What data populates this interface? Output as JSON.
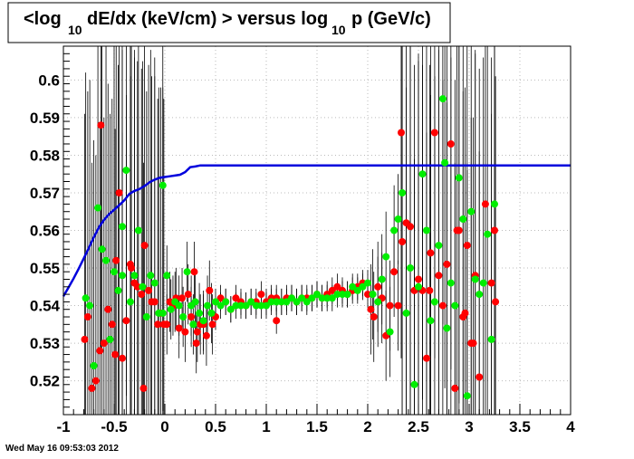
{
  "chart_data": {
    "type": "scatter",
    "title_parts": [
      "<log",
      "10",
      "dE/dx (keV/cm) > versus log",
      "10",
      "p (GeV/c)"
    ],
    "xlabel": "",
    "ylabel": "",
    "xlim": [
      -1,
      4
    ],
    "ylim": [
      0.511,
      0.609
    ],
    "xticks": [
      "-1",
      "-0.5",
      "0",
      "0.5",
      "1",
      "1.5",
      "2",
      "2.5",
      "3",
      "3.5",
      "4"
    ],
    "yticks": [
      "0.52",
      "0.53",
      "0.54",
      "0.55",
      "0.56",
      "0.57",
      "0.58",
      "0.59",
      "0.6"
    ],
    "grid": true,
    "colors": {
      "red_series": "#ff0000",
      "green_series": "#00ee00",
      "curve": "#0000dd",
      "error_bars": "#000000"
    },
    "curve": {
      "x": [
        -1.0,
        -0.95,
        -0.9,
        -0.85,
        -0.8,
        -0.75,
        -0.7,
        -0.65,
        -0.6,
        -0.55,
        -0.5,
        -0.45,
        -0.4,
        -0.35,
        -0.3,
        -0.25,
        -0.2,
        -0.15,
        -0.1,
        -0.05,
        0.0,
        0.05,
        0.1,
        0.15,
        0.2,
        0.25,
        0.3,
        0.35,
        0.4,
        1.0,
        2.0,
        3.0,
        4.0
      ],
      "y": [
        0.5425,
        0.5448,
        0.5472,
        0.5498,
        0.5525,
        0.5553,
        0.5582,
        0.5608,
        0.5628,
        0.5643,
        0.5655,
        0.5667,
        0.568,
        0.5697,
        0.5705,
        0.571,
        0.5718,
        0.5728,
        0.5735,
        0.574,
        0.5742,
        0.5744,
        0.5746,
        0.5748,
        0.5755,
        0.5768,
        0.577,
        0.5773,
        0.5773,
        0.5773,
        0.5773,
        0.5773,
        0.5773
      ]
    },
    "series": [
      {
        "color": "red",
        "x": [
          -0.79,
          -0.76,
          -0.72,
          -0.68,
          -0.64,
          -0.6,
          -0.56,
          -0.52,
          -0.49,
          -0.45,
          -0.42,
          -0.38,
          -0.34,
          -0.3,
          -0.27,
          -0.23,
          -0.2,
          -0.16,
          -0.13,
          -0.1,
          -0.07,
          -0.04,
          -0.01,
          0.02,
          0.05,
          0.08,
          0.11,
          0.14,
          0.17,
          0.2,
          0.23,
          0.26,
          0.29,
          0.32,
          0.35,
          0.38,
          0.41,
          0.44,
          0.47,
          0.5,
          0.55,
          0.6,
          0.65,
          0.7,
          0.75,
          0.8,
          0.85,
          0.9,
          0.95,
          1.0,
          1.05,
          1.1,
          1.15,
          1.2,
          1.25,
          1.3,
          1.35,
          1.4,
          1.45,
          1.5,
          1.55,
          1.6,
          1.65,
          1.7,
          1.75,
          1.8,
          1.85,
          1.9,
          1.95,
          2.0,
          2.03,
          2.06,
          2.1,
          2.14,
          2.18,
          2.22,
          2.26,
          2.3,
          2.34,
          2.38,
          2.42,
          2.46,
          2.5,
          2.54,
          2.58,
          2.62,
          2.66,
          2.7,
          2.74,
          2.78,
          2.82,
          2.86,
          2.9,
          2.94,
          2.98,
          3.02,
          3.06,
          3.1,
          3.16,
          3.22,
          3.26,
          -0.63,
          -0.48,
          -0.33,
          -0.21,
          0.31,
          1.1,
          2.33,
          2.61,
          2.88
        ],
        "y": [
          0.531,
          0.537,
          0.518,
          0.52,
          0.528,
          0.53,
          0.539,
          0.535,
          0.527,
          0.57,
          0.526,
          0.536,
          0.551,
          0.546,
          0.545,
          0.543,
          0.556,
          0.544,
          0.541,
          0.541,
          0.535,
          0.538,
          0.535,
          0.535,
          0.541,
          0.54,
          0.542,
          0.534,
          0.542,
          0.533,
          0.543,
          0.537,
          0.549,
          0.533,
          0.535,
          0.535,
          0.532,
          0.544,
          0.535,
          0.537,
          0.542,
          0.541,
          0.539,
          0.542,
          0.541,
          0.54,
          0.541,
          0.541,
          0.543,
          0.541,
          0.542,
          0.542,
          0.541,
          0.542,
          0.542,
          0.541,
          0.542,
          0.542,
          0.542,
          0.543,
          0.542,
          0.543,
          0.544,
          0.545,
          0.544,
          0.543,
          0.544,
          0.545,
          0.546,
          0.543,
          0.539,
          0.537,
          0.545,
          0.542,
          0.532,
          0.54,
          0.549,
          0.54,
          0.557,
          0.562,
          0.561,
          0.544,
          0.547,
          0.544,
          0.526,
          0.554,
          0.586,
          0.548,
          0.54,
          0.551,
          0.583,
          0.518,
          0.56,
          0.537,
          0.556,
          0.53,
          0.548,
          0.521,
          0.567,
          0.546,
          0.541,
          0.588,
          0.552,
          0.55,
          0.518,
          0.53,
          0.536,
          0.586,
          0.544,
          0.56
        ],
        "x_extra": [
          2.96,
          3.04,
          3.25
        ],
        "y_extra": [
          0.538,
          0.53,
          0.56
        ]
      },
      {
        "color": "green",
        "x": [
          -0.78,
          -0.74,
          -0.7,
          -0.66,
          -0.62,
          -0.58,
          -0.54,
          -0.5,
          -0.46,
          -0.42,
          -0.38,
          -0.34,
          -0.3,
          -0.26,
          -0.22,
          -0.18,
          -0.14,
          -0.1,
          -0.06,
          -0.02,
          0.02,
          0.06,
          0.1,
          0.14,
          0.18,
          0.22,
          0.26,
          0.3,
          0.34,
          0.38,
          0.42,
          0.46,
          0.5,
          0.55,
          0.6,
          0.65,
          0.7,
          0.75,
          0.8,
          0.85,
          0.9,
          0.95,
          1.0,
          1.05,
          1.1,
          1.15,
          1.2,
          1.25,
          1.3,
          1.35,
          1.4,
          1.45,
          1.5,
          1.55,
          1.6,
          1.65,
          1.7,
          1.75,
          1.8,
          1.85,
          1.9,
          1.95,
          2.0,
          2.05,
          2.1,
          2.14,
          2.18,
          2.22,
          2.26,
          2.3,
          2.34,
          2.38,
          2.42,
          2.46,
          2.5,
          2.54,
          2.58,
          2.62,
          2.66,
          2.7,
          2.74,
          2.78,
          2.82,
          2.86,
          2.9,
          2.94,
          2.98,
          3.02,
          3.06,
          3.1,
          3.14,
          3.18,
          3.22,
          3.25,
          -0.42,
          -0.02,
          0.28,
          2.76
        ],
        "y": [
          0.542,
          0.54,
          0.524,
          0.566,
          0.555,
          0.552,
          0.531,
          0.549,
          0.544,
          0.561,
          0.576,
          0.541,
          0.548,
          0.56,
          0.545,
          0.537,
          0.548,
          0.546,
          0.538,
          0.572,
          0.548,
          0.539,
          0.541,
          0.54,
          0.537,
          0.549,
          0.54,
          0.541,
          0.538,
          0.536,
          0.54,
          0.538,
          0.541,
          0.54,
          0.541,
          0.539,
          0.54,
          0.54,
          0.54,
          0.541,
          0.54,
          0.54,
          0.54,
          0.541,
          0.541,
          0.541,
          0.541,
          0.542,
          0.541,
          0.542,
          0.541,
          0.542,
          0.543,
          0.542,
          0.542,
          0.542,
          0.543,
          0.543,
          0.543,
          0.545,
          0.544,
          0.545,
          0.546,
          0.543,
          0.541,
          0.547,
          0.553,
          0.533,
          0.56,
          0.563,
          0.57,
          0.538,
          0.55,
          0.519,
          0.545,
          0.575,
          0.56,
          0.536,
          0.541,
          0.556,
          0.595,
          0.534,
          0.546,
          0.54,
          0.574,
          0.563,
          0.516,
          0.565,
          0.547,
          0.543,
          0.546,
          0.559,
          0.531,
          0.567,
          0.548,
          0.538,
          0.535,
          0.578
        ]
      }
    ]
  },
  "footer": {
    "timestamp": "Wed May 16 09:53:03 2012"
  }
}
